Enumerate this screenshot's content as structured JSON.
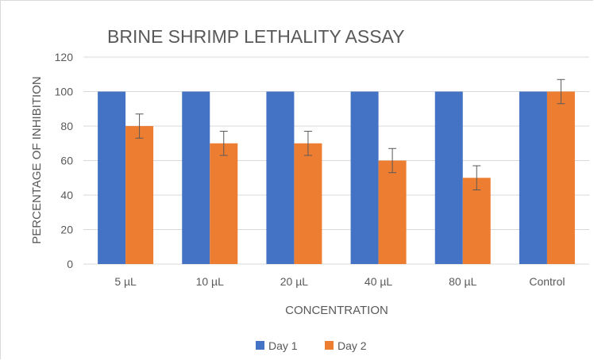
{
  "chart_data": {
    "type": "bar",
    "title": "BRINE SHRIMP LETHALITY ASSAY",
    "xlabel": "CONCENTRATION",
    "ylabel": "PERCENTAGE OF INHIBITION",
    "categories": [
      "5 µL",
      "10 µL",
      "20 µL",
      "40 µL",
      "80 µL",
      "Control"
    ],
    "series": [
      {
        "name": "Day 1",
        "color": "#4472C4",
        "values": [
          100,
          100,
          100,
          100,
          100,
          100
        ],
        "errors": [
          0,
          0,
          0,
          0,
          0,
          0
        ]
      },
      {
        "name": "Day 2",
        "color": "#ED7D31",
        "values": [
          80,
          70,
          70,
          60,
          50,
          100
        ],
        "errors": [
          7,
          7,
          7,
          7,
          7,
          7
        ]
      }
    ],
    "ylim": [
      0,
      120
    ],
    "yticks": [
      0,
      20,
      40,
      60,
      80,
      100,
      120
    ],
    "grid": true,
    "legend_position": "bottom"
  }
}
